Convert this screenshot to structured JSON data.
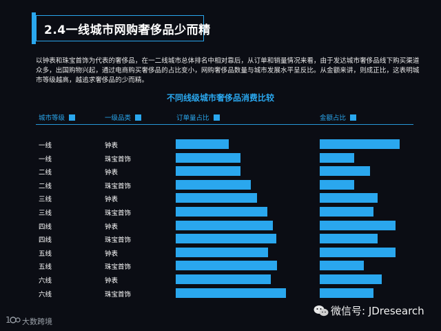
{
  "header": {
    "title": "2.4一线城市网购奢侈品少而精"
  },
  "description": "以钟表和珠宝首饰为代表的奢侈品，在一二线城市总体排名中相对靠后，从订单和销量情况来看，由于发达城市奢侈品线下购买渠道众多，出国购物兴起，通过电商购买奢侈品的占比变小，网购奢侈品数量与城市发展水平呈反比。从金额来讲，则成正比，这表明城市等级越高，越追求奢侈品的少而精。",
  "chart_data": {
    "type": "bar",
    "title": "不同线级城市奢侈品消费比较",
    "columns": [
      "城市等级",
      "一级品类",
      "订单量占比",
      "金额占比"
    ],
    "rows": [
      {
        "city_tier": "一线",
        "category": "钟表"
      },
      {
        "city_tier": "一线",
        "category": "珠宝首饰"
      },
      {
        "city_tier": "二线",
        "category": "钟表"
      },
      {
        "city_tier": "二线",
        "category": "珠宝首饰"
      },
      {
        "city_tier": "三线",
        "category": "钟表"
      },
      {
        "city_tier": "三线",
        "category": "珠宝首饰"
      },
      {
        "city_tier": "四线",
        "category": "钟表"
      },
      {
        "city_tier": "四线",
        "category": "珠宝首饰"
      },
      {
        "city_tier": "五线",
        "category": "钟表"
      },
      {
        "city_tier": "五线",
        "category": "珠宝首饰"
      },
      {
        "city_tier": "六线",
        "category": "钟表"
      },
      {
        "city_tier": "六线",
        "category": "珠宝首饰"
      }
    ],
    "series": [
      {
        "name": "订单量占比",
        "values": [
          0.48,
          0.59,
          0.59,
          0.68,
          0.74,
          0.83,
          0.88,
          0.91,
          0.84,
          0.92,
          0.86,
          1.0
        ]
      },
      {
        "name": "金额占比",
        "values": [
          1.0,
          0.43,
          0.63,
          0.43,
          0.72,
          0.67,
          0.95,
          0.72,
          0.95,
          0.55,
          0.78,
          0.67
        ]
      }
    ],
    "note": "bar lengths are relative to the longest bar in each column (no numeric axis shown)",
    "color": "#2aa7ee"
  },
  "footer": {
    "brand": "大数跨境",
    "wechat": "微信号: JDresearch"
  },
  "colors": {
    "accent": "#2aa7ee",
    "background": "#0b0d14"
  }
}
